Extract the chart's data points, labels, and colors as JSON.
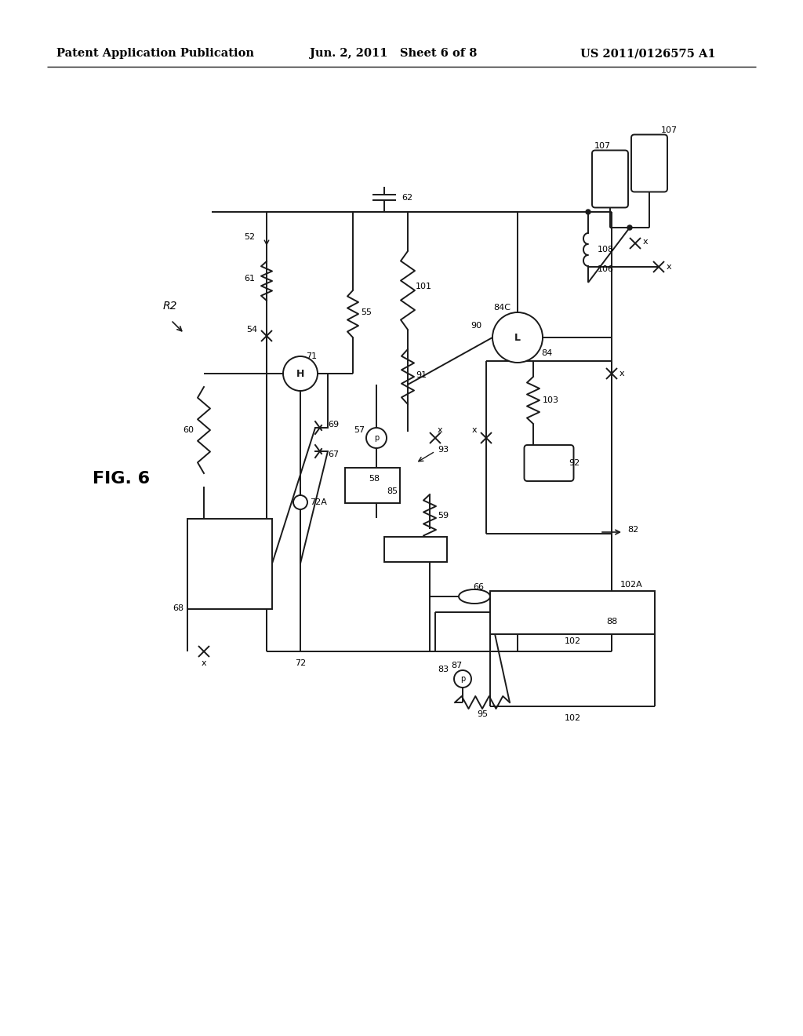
{
  "title_left": "Patent Application Publication",
  "title_mid": "Jun. 2, 2011   Sheet 6 of 8",
  "title_right": "US 2011/0126575 A1",
  "fig_label": "FIG. 6",
  "r2_label": "R2",
  "bg_color": "#ffffff",
  "line_color": "#1a1a1a",
  "header_font_size": 10.5,
  "fig_font_size": 16,
  "lw": 1.4
}
